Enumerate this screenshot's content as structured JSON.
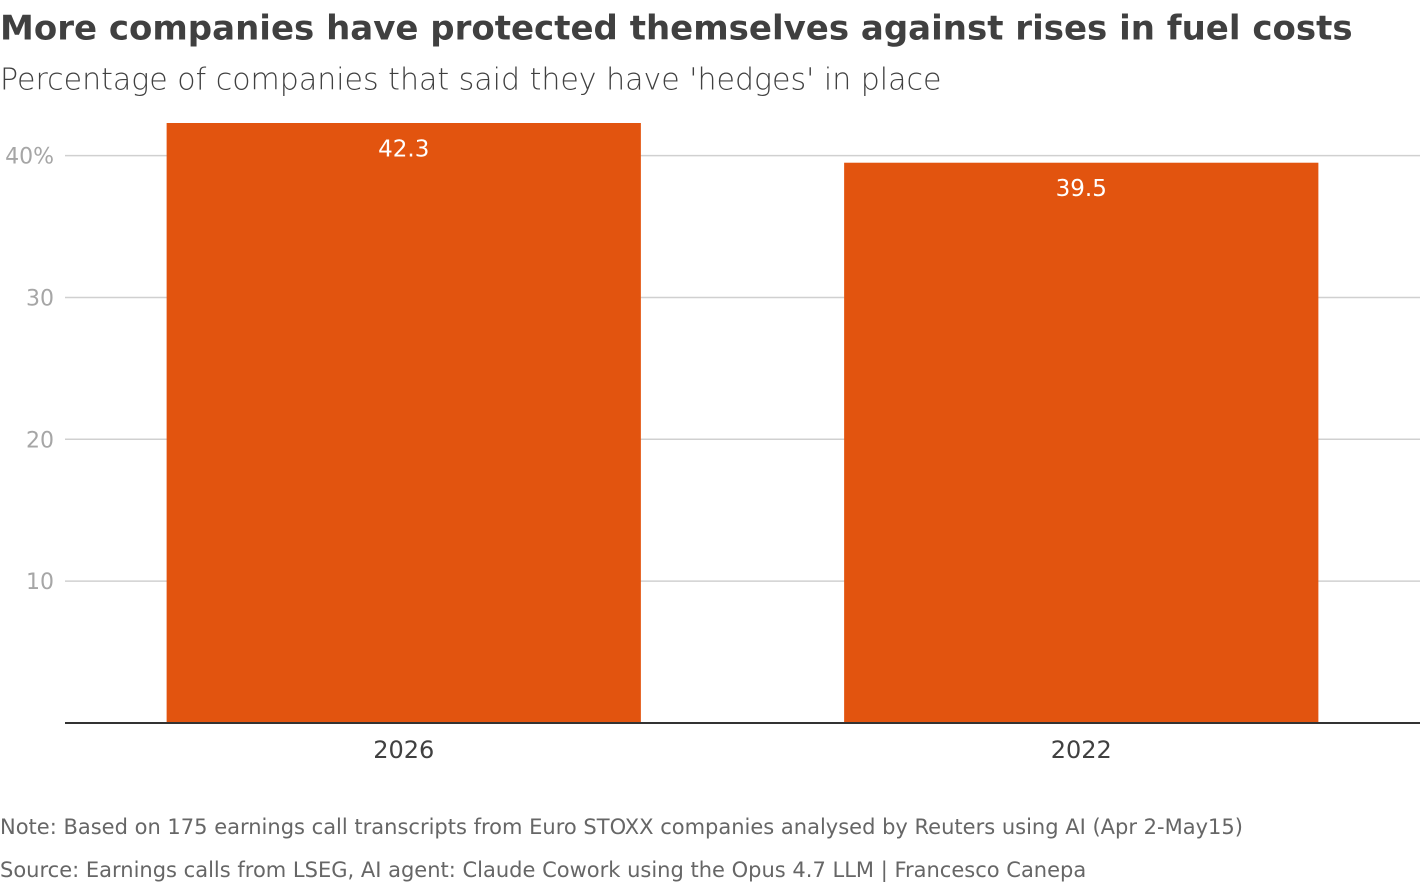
{
  "chart_data": {
    "type": "bar",
    "title": "More companies have protected themselves against rises in fuel costs",
    "subtitle": "Percentage of companies that said they have 'hedges' in place",
    "categories": [
      "2026",
      "2022"
    ],
    "values": [
      42.3,
      39.5
    ],
    "color": "#e2540f",
    "ylim": [
      0,
      42.3
    ],
    "yticks": [
      10,
      20,
      30,
      {
        "value": 40,
        "label": "40%"
      }
    ],
    "grid": true,
    "note": "Note: Based on 175 earnings call transcripts from Euro STOXX companies analysed by Reuters using AI (Apr 2-May15)",
    "source": "Source: Earnings calls from LSEG, AI agent: Claude Cowork using the Opus 4.7 LLM | Francesco Canepa"
  }
}
